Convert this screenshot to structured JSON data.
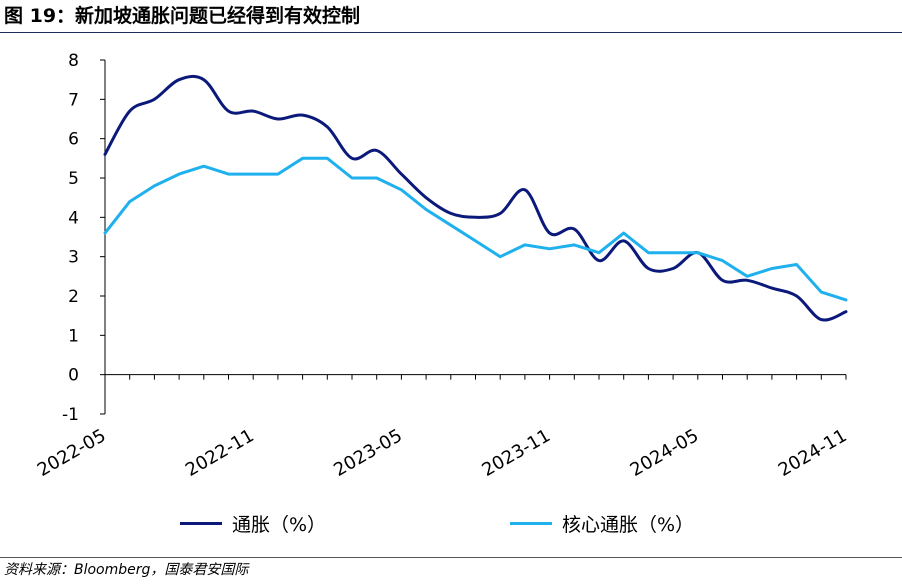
{
  "title": "图 19：新加坡通胀问题已经得到有效控制",
  "source": "资料来源：Bloomberg，国泰君安国际",
  "colors": {
    "inflation": "#0b1a7a",
    "core": "#1fb0ee",
    "axis": "#000000"
  },
  "chart_data": {
    "type": "line",
    "title": "",
    "xlabel": "",
    "ylabel": "",
    "ylim": [
      -1,
      8
    ],
    "yticks": [
      -1,
      0,
      1,
      2,
      3,
      4,
      5,
      6,
      7,
      8
    ],
    "xtick_labels": [
      "2022-05",
      "2022-11",
      "2023-05",
      "2023-11",
      "2024-05",
      "2024-11"
    ],
    "grid": false,
    "legend_position": "bottom",
    "x": [
      "2022-05",
      "2022-06",
      "2022-07",
      "2022-08",
      "2022-09",
      "2022-10",
      "2022-11",
      "2022-12",
      "2023-01",
      "2023-02",
      "2023-03",
      "2023-04",
      "2023-05",
      "2023-06",
      "2023-07",
      "2023-08",
      "2023-09",
      "2023-10",
      "2023-11",
      "2023-12",
      "2024-01",
      "2024-02",
      "2024-03",
      "2024-04",
      "2024-05",
      "2024-06",
      "2024-07",
      "2024-08",
      "2024-09",
      "2024-10",
      "2024-11"
    ],
    "series": [
      {
        "name": "通胀（%）",
        "values": [
          5.6,
          6.7,
          7.0,
          7.5,
          7.5,
          6.7,
          6.7,
          6.5,
          6.6,
          6.3,
          5.5,
          5.7,
          5.1,
          4.5,
          4.1,
          4.0,
          4.1,
          4.7,
          3.6,
          3.7,
          2.9,
          3.4,
          2.7,
          2.7,
          3.1,
          2.4,
          2.4,
          2.2,
          2.0,
          1.4,
          1.6
        ]
      },
      {
        "name": "核心通胀（%）",
        "values": [
          3.6,
          4.4,
          4.8,
          5.1,
          5.3,
          5.1,
          5.1,
          5.1,
          5.5,
          5.5,
          5.0,
          5.0,
          4.7,
          4.2,
          3.8,
          3.4,
          3.0,
          3.3,
          3.2,
          3.3,
          3.1,
          3.6,
          3.1,
          3.1,
          3.1,
          2.9,
          2.5,
          2.7,
          2.8,
          2.1,
          1.9
        ]
      }
    ]
  }
}
